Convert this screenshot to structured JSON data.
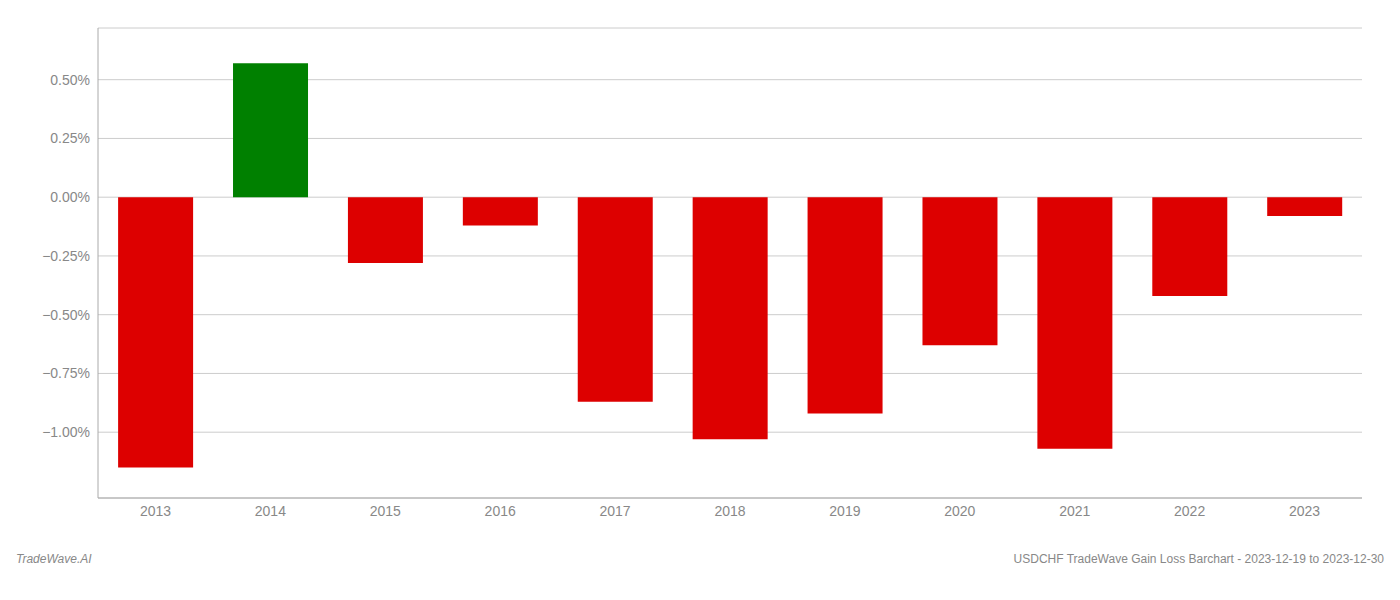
{
  "chart_data": {
    "type": "bar",
    "categories": [
      "2013",
      "2014",
      "2015",
      "2016",
      "2017",
      "2018",
      "2019",
      "2020",
      "2021",
      "2022",
      "2023"
    ],
    "values": [
      -1.15,
      0.57,
      -0.28,
      -0.12,
      -0.87,
      -1.03,
      -0.92,
      -0.63,
      -1.07,
      -0.42,
      -0.08
    ],
    "colors": [
      "#DD0000",
      "#008000",
      "#DD0000",
      "#DD0000",
      "#DD0000",
      "#DD0000",
      "#DD0000",
      "#DD0000",
      "#DD0000",
      "#DD0000",
      "#DD0000"
    ],
    "ylim": [
      -1.28,
      0.72
    ],
    "yticks": [
      {
        "value": -1.0,
        "label": "−1.00%"
      },
      {
        "value": -0.75,
        "label": "−0.75%"
      },
      {
        "value": -0.5,
        "label": "−0.50%"
      },
      {
        "value": -0.25,
        "label": "−0.25%"
      },
      {
        "value": 0.0,
        "label": "0.00%"
      },
      {
        "value": 0.25,
        "label": "0.25%"
      },
      {
        "value": 0.5,
        "label": "0.50%"
      }
    ],
    "grid": true,
    "annotations": [
      "TradeWave.AI",
      "USDCHF TradeWave Gain Loss Barchart - 2023-12-19 to 2023-12-30"
    ]
  }
}
